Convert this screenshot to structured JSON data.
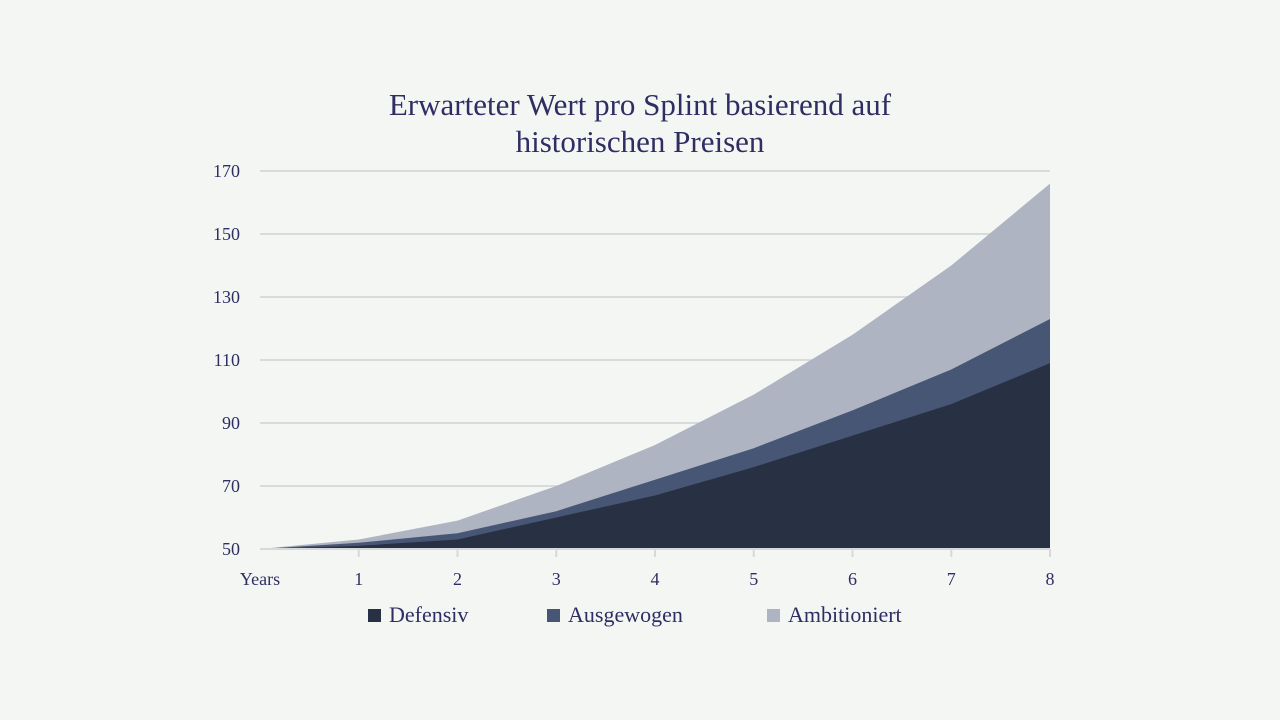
{
  "chart_data": {
    "type": "area",
    "stacked": false,
    "title_lines": [
      "Erwarteter Wert pro Splint basierend auf",
      "historischen Preisen"
    ],
    "x": [
      0,
      1,
      2,
      3,
      4,
      5,
      6,
      7,
      8
    ],
    "x_tick_labels": [
      "Years",
      "1",
      "2",
      "3",
      "4",
      "5",
      "6",
      "7",
      "8"
    ],
    "ylim": [
      50,
      170
    ],
    "y_ticks": [
      50,
      70,
      90,
      110,
      130,
      150,
      170
    ],
    "grid": true,
    "legend_position": "bottom",
    "series": [
      {
        "name": "Ambitioniert",
        "color": "#aeb4c1",
        "values": [
          50,
          53,
          59,
          70,
          83,
          99,
          118,
          140,
          166
        ]
      },
      {
        "name": "Ausgewogen",
        "color": "#475674",
        "values": [
          50,
          52,
          55,
          62,
          72,
          82,
          94,
          107,
          123
        ]
      },
      {
        "name": "Defensiv",
        "color": "#283044",
        "values": [
          50,
          51,
          53,
          60,
          67,
          76,
          86,
          96,
          109
        ]
      }
    ],
    "legend": [
      {
        "name": "Defensiv",
        "color": "#283044"
      },
      {
        "name": "Ausgewogen",
        "color": "#475674"
      },
      {
        "name": "Ambitioniert",
        "color": "#aeb4c1"
      }
    ]
  }
}
